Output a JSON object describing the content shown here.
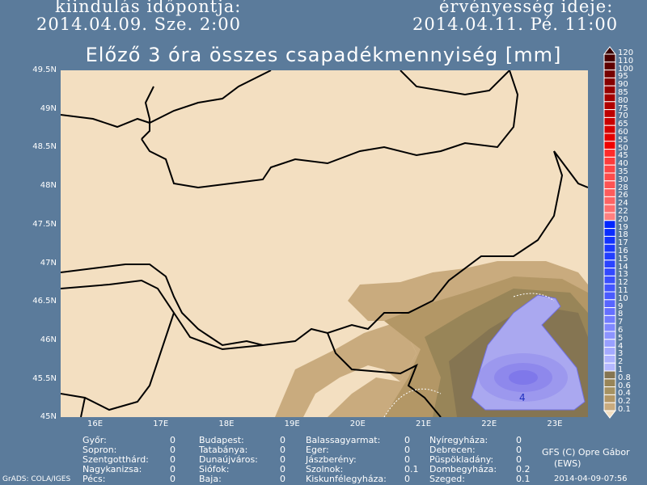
{
  "header": {
    "init_label": "kiindulás időpontja:",
    "init_value": "2014.04.09. Sze. 2:00",
    "valid_label": "érvényesség ideje:",
    "valid_value": "2014.04.11. Pé. 11:00"
  },
  "title": "Előző 3 óra összes csapadékmennyiség [mm]",
  "map": {
    "lat_ticks": [
      "49.5N",
      "49N",
      "48.5N",
      "48N",
      "47.5N",
      "47N",
      "46.5N",
      "46N",
      "45.5N",
      "45N"
    ],
    "lon_ticks": [
      "16E",
      "17E",
      "18E",
      "19E",
      "20E",
      "21E",
      "22E",
      "23E"
    ],
    "land_color": "#f3dfc1",
    "max_label": "4"
  },
  "colorbar": {
    "labels": [
      "120",
      "110",
      "100",
      "95",
      "90",
      "85",
      "80",
      "75",
      "70",
      "65",
      "60",
      "55",
      "50",
      "45",
      "40",
      "35",
      "30",
      "28",
      "26",
      "24",
      "22",
      "20",
      "19",
      "18",
      "17",
      "16",
      "15",
      "14",
      "13",
      "12",
      "11",
      "10",
      "9",
      "8",
      "7",
      "6",
      "5",
      "4",
      "3",
      "2",
      "1",
      "0.8",
      "0.6",
      "0.4",
      "0.2",
      "0.1"
    ]
  },
  "stations": [
    [
      [
        "Győr:",
        "0"
      ],
      [
        "Sopron:",
        "0"
      ],
      [
        "Szentgotthárd:",
        "0"
      ],
      [
        "Nagykanizsa:",
        "0"
      ],
      [
        "Pécs:",
        "0"
      ]
    ],
    [
      [
        "Budapest:",
        "0"
      ],
      [
        "Tatabánya:",
        "0"
      ],
      [
        "Dunaújváros:",
        "0"
      ],
      [
        "Siófok:",
        "0"
      ],
      [
        "Baja:",
        "0"
      ]
    ],
    [
      [
        "Balassagyarmat:",
        "0"
      ],
      [
        "Eger:",
        "0"
      ],
      [
        "Jászberény:",
        "0"
      ],
      [
        "Szolnok:",
        "0.1"
      ],
      [
        "Kiskunfélegyháza:",
        "0"
      ]
    ],
    [
      [
        "Nyíregyháza:",
        "0"
      ],
      [
        "Debrecen:",
        "0"
      ],
      [
        "Püspökladány:",
        "0"
      ],
      [
        "Dombegyháza:",
        "0.2"
      ],
      [
        "Szeged:",
        "0.1"
      ]
    ]
  ],
  "footer": {
    "credit": "GFS (C) Opre Gábor",
    "credit2": "(EWS)",
    "grads": "GrADS: COLA/IGES",
    "date": "2014-04-09-07:56"
  }
}
